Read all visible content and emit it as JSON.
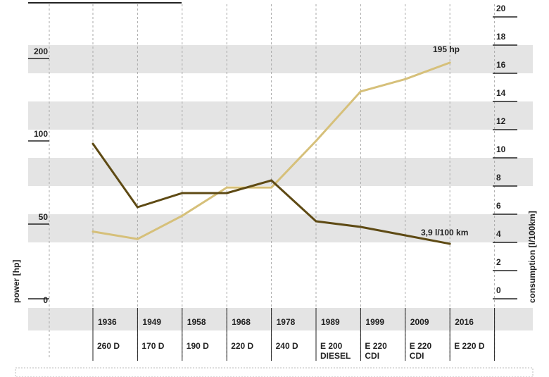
{
  "chart_data": {
    "type": "line",
    "categories": [
      "1936",
      "1949",
      "1958",
      "1968",
      "1978",
      "1989",
      "1999",
      "2009",
      "2016"
    ],
    "models": [
      [
        "260 D"
      ],
      [
        "170 D"
      ],
      [
        "190 D"
      ],
      [
        "220 D"
      ],
      [
        "240 D"
      ],
      [
        "E 200",
        "DIESEL"
      ],
      [
        "E 220",
        "CDI"
      ],
      [
        "E 220",
        "CDI"
      ],
      [
        "E 220 D"
      ]
    ],
    "series": [
      {
        "axis": "left",
        "color": "#d6c07a",
        "values": [
          45,
          40,
          55,
          72,
          72,
          100,
          160,
          175,
          195
        ]
      },
      {
        "axis": "right",
        "color": "#5e4a14",
        "values": [
          11,
          6.5,
          7.5,
          7.5,
          8.4,
          5.5,
          5.1,
          4.5,
          3.9
        ]
      }
    ],
    "left_axis": {
      "label": "power [hp]",
      "ticks": [
        "0",
        "50",
        "100",
        "200"
      ]
    },
    "right_axis": {
      "label": "consumption [l/100km]",
      "ylim": [
        0,
        20
      ],
      "ticks": [
        "0",
        "2",
        "4",
        "6",
        "8",
        "10",
        "12",
        "14",
        "16",
        "18",
        "20"
      ]
    },
    "annotations": {
      "power": "195 hp",
      "consumption": "3,9 l/100 km"
    },
    "colors": {
      "band": "#e4e4e4",
      "grid": "#aaaaaa",
      "text": "#222222"
    }
  }
}
